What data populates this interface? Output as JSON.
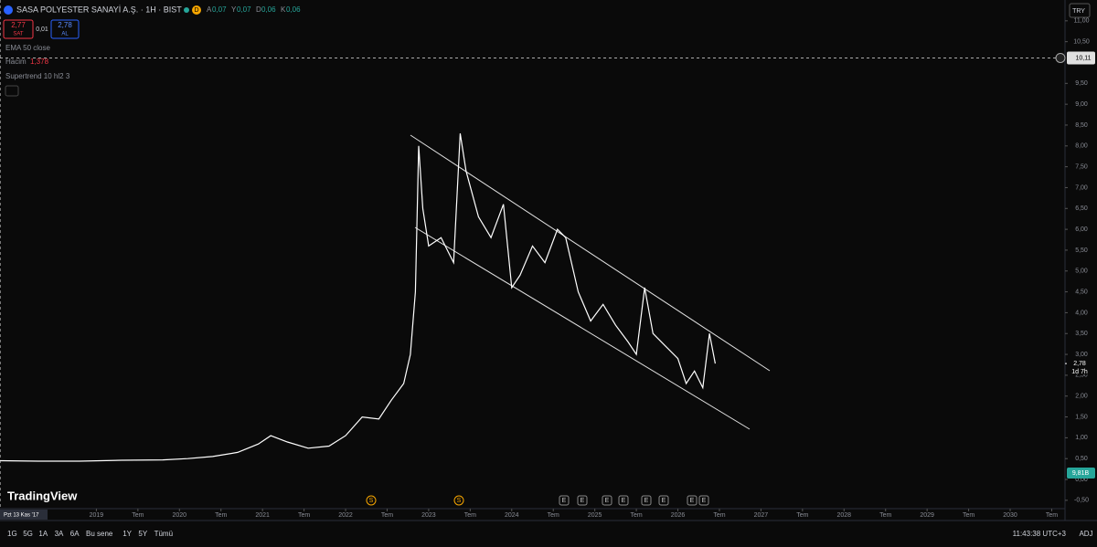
{
  "header": {
    "symbol": "SASA POLYESTER SANAYİ A.Ş. · 1H · BIST",
    "badge": "D",
    "ohlc": [
      {
        "k": "A",
        "v": "0,07"
      },
      {
        "k": "Y",
        "v": "0,07"
      },
      {
        "k": "D",
        "v": "0,06"
      },
      {
        "k": "K",
        "v": "0,06"
      }
    ],
    "sell": {
      "price": "2,77",
      "label": "SAT"
    },
    "spread": "0,01",
    "buy": {
      "price": "2,78",
      "label": "AL"
    },
    "currency": "TRY"
  },
  "indicators": [
    {
      "name": "EMA 50 close"
    },
    {
      "name": "Hacim",
      "value": "1,378"
    },
    {
      "name": "Supertrend 10 hl2 3"
    }
  ],
  "chart_data": {
    "type": "line",
    "color": "#ffffff",
    "x": [
      2017.84,
      2018.3,
      2018.8,
      2019.3,
      2019.8,
      2020.1,
      2020.4,
      2020.7,
      2020.95,
      2021.1,
      2021.3,
      2021.55,
      2021.8,
      2022.0,
      2022.2,
      2022.4,
      2022.55,
      2022.7,
      2022.78,
      2022.84,
      2022.88,
      2022.93,
      2023.0,
      2023.15,
      2023.3,
      2023.38,
      2023.45,
      2023.6,
      2023.75,
      2023.9,
      2024.0,
      2024.1,
      2024.25,
      2024.4,
      2024.55,
      2024.65,
      2024.8,
      2024.95,
      2025.1,
      2025.25,
      2025.4,
      2025.5,
      2025.6,
      2025.7,
      2025.85,
      2026.0,
      2026.1,
      2026.2,
      2026.3,
      2026.38,
      2026.45
    ],
    "values": [
      0.45,
      0.44,
      0.44,
      0.46,
      0.47,
      0.5,
      0.55,
      0.65,
      0.85,
      1.05,
      0.9,
      0.75,
      0.8,
      1.05,
      1.5,
      1.45,
      1.9,
      2.3,
      3.0,
      4.5,
      8.0,
      6.5,
      5.6,
      5.8,
      5.2,
      8.3,
      7.4,
      6.3,
      5.8,
      6.6,
      4.6,
      4.9,
      5.6,
      5.2,
      6.0,
      5.8,
      4.5,
      3.8,
      4.2,
      3.7,
      3.3,
      3.0,
      4.6,
      3.5,
      3.2,
      2.9,
      2.3,
      2.6,
      2.2,
      3.5,
      2.78
    ],
    "xlim": [
      2017.84,
      2030.66
    ],
    "ylim": [
      -0.7,
      11.5
    ],
    "yticks": [
      {
        "value": -0.5,
        "label": "-0,50"
      },
      {
        "value": 0,
        "label": "0,00"
      },
      {
        "value": 0.5,
        "label": "0,50"
      },
      {
        "value": 1,
        "label": "1,00"
      },
      {
        "value": 1.5,
        "label": "1,50"
      },
      {
        "value": 2,
        "label": "2,00"
      },
      {
        "value": 2.5,
        "label": "2,50"
      },
      {
        "value": 3,
        "label": "3,00"
      },
      {
        "value": 3.5,
        "label": "3,50"
      },
      {
        "value": 4,
        "label": "4,00"
      },
      {
        "value": 4.5,
        "label": "4,50"
      },
      {
        "value": 5,
        "label": "5,00"
      },
      {
        "value": 5.5,
        "label": "5,50"
      },
      {
        "value": 6,
        "label": "6,00"
      },
      {
        "value": 6.5,
        "label": "6,50"
      },
      {
        "value": 7,
        "label": "7,00"
      },
      {
        "value": 7.5,
        "label": "7,50"
      },
      {
        "value": 8,
        "label": "8,00"
      },
      {
        "value": 8.5,
        "label": "8,50"
      },
      {
        "value": 9,
        "label": "9,00"
      },
      {
        "value": 9.5,
        "label": "9,50"
      },
      {
        "value": 10.5,
        "label": "10,50"
      },
      {
        "value": 11,
        "label": "11,00"
      }
    ],
    "xticks": [
      {
        "value": 2019,
        "label": "2019"
      },
      {
        "value": 2019.5,
        "label": "Tem"
      },
      {
        "value": 2020,
        "label": "2020"
      },
      {
        "value": 2020.5,
        "label": "Tem"
      },
      {
        "value": 2021,
        "label": "2021"
      },
      {
        "value": 2021.5,
        "label": "Tem"
      },
      {
        "value": 2022,
        "label": "2022"
      },
      {
        "value": 2022.5,
        "label": "Tem"
      },
      {
        "value": 2023,
        "label": "2023"
      },
      {
        "value": 2023.5,
        "label": "Tem"
      },
      {
        "value": 2024,
        "label": "2024"
      },
      {
        "value": 2024.5,
        "label": "Tem"
      },
      {
        "value": 2025,
        "label": "2025"
      },
      {
        "value": 2025.5,
        "label": "Tem"
      },
      {
        "value": 2026,
        "label": "2026"
      },
      {
        "value": 2026.5,
        "label": "Tem"
      },
      {
        "value": 2027,
        "label": "2027"
      },
      {
        "value": 2027.5,
        "label": "Tem"
      },
      {
        "value": 2028,
        "label": "2028"
      },
      {
        "value": 2028.5,
        "label": "Tem"
      },
      {
        "value": 2029,
        "label": "2029"
      },
      {
        "value": 2029.5,
        "label": "Tem"
      },
      {
        "value": 2030,
        "label": "2030"
      },
      {
        "value": 2030.5,
        "label": "Tem"
      }
    ],
    "crosshair": {
      "value": 10.11,
      "label": "10,11"
    },
    "last_price": {
      "value": 2.78,
      "label": "2,78",
      "countdown": "1d 7h"
    },
    "volume_label": "9,81B",
    "cursor_date": "Pzt 13 Kas '17",
    "events": [
      "S",
      "S",
      "E",
      "E",
      "E",
      "E",
      "E",
      "E",
      "E",
      "E"
    ]
  },
  "footer": {
    "ranges": [
      "1G",
      "5G",
      "1A",
      "3A",
      "6A",
      "Bu sene",
      "1Y",
      "5Y",
      "Tümü"
    ],
    "time": "11:43:38 UTC+3",
    "adj": "ADJ"
  },
  "brand": "TradingView"
}
